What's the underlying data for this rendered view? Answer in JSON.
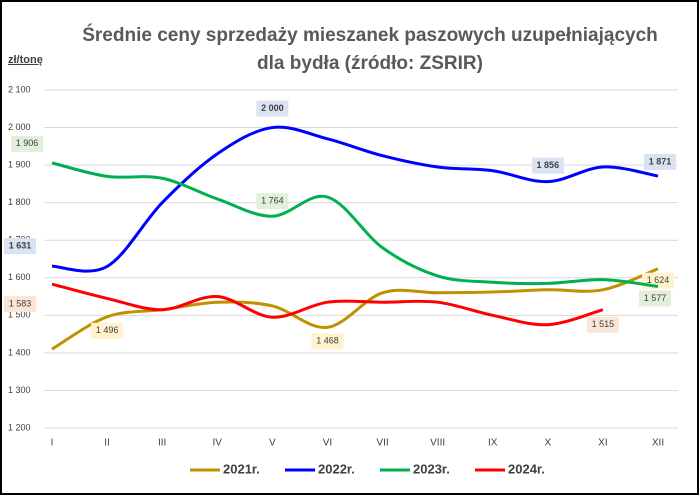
{
  "chart_data": {
    "type": "line",
    "title": [
      "Średnie ceny sprzedaży mieszanek paszowych uzupełniających",
      "dla bydła  (źródło: ZSRIR)"
    ],
    "y_label": "zł/tonę",
    "categories": [
      "I",
      "II",
      "III",
      "IV",
      "V",
      "VI",
      "VII",
      "VIII",
      "IX",
      "X",
      "XI",
      "XII"
    ],
    "series": [
      {
        "name": "2021r.",
        "color": "#bf9000",
        "values": [
          1410,
          1496,
          1515,
          1535,
          1525,
          1468,
          1560,
          1560,
          1562,
          1568,
          1568,
          1624
        ],
        "value_labels": [
          null,
          "1 496",
          null,
          null,
          null,
          "1 468",
          null,
          null,
          null,
          null,
          null,
          "1 624"
        ]
      },
      {
        "name": "2022r.",
        "color": "#0000ff",
        "values": [
          1631,
          1630,
          1800,
          1930,
          2000,
          1970,
          1925,
          1895,
          1885,
          1856,
          1895,
          1871
        ],
        "value_labels": [
          "1 631",
          null,
          null,
          null,
          "2 000",
          null,
          null,
          null,
          null,
          "1 856",
          null,
          "1 871"
        ]
      },
      {
        "name": "2023r.",
        "color": "#00b050",
        "values": [
          1906,
          1870,
          1865,
          1810,
          1764,
          1815,
          1680,
          1605,
          1588,
          1585,
          1595,
          1577
        ],
        "value_labels": [
          "1 906",
          null,
          null,
          null,
          "1 764",
          null,
          null,
          null,
          null,
          null,
          null,
          "1 577"
        ]
      },
      {
        "name": "2024r.",
        "color": "#ff0000",
        "values": [
          1583,
          1545,
          1515,
          1550,
          1495,
          1535,
          1535,
          1535,
          1500,
          1475,
          1515,
          null
        ],
        "value_labels": [
          "1 583",
          null,
          null,
          null,
          null,
          null,
          null,
          null,
          null,
          null,
          "1 515",
          null
        ]
      }
    ],
    "ylim": [
      1200,
      2100
    ],
    "yticks": [
      {
        "value": 1200,
        "label": "1 200"
      },
      {
        "value": 1300,
        "label": "1 300"
      },
      {
        "value": 1400,
        "label": "1 400"
      },
      {
        "value": 1500,
        "label": "1 500"
      },
      {
        "value": 1600,
        "label": "1 600"
      },
      {
        "value": 1700,
        "label": "1 700"
      },
      {
        "value": 1800,
        "label": "1 800"
      },
      {
        "value": 1900,
        "label": "1 900"
      },
      {
        "value": 2000,
        "label": "2 000"
      },
      {
        "value": 2100,
        "label": "2 100"
      }
    ],
    "grid": true,
    "legend": "bottom"
  }
}
